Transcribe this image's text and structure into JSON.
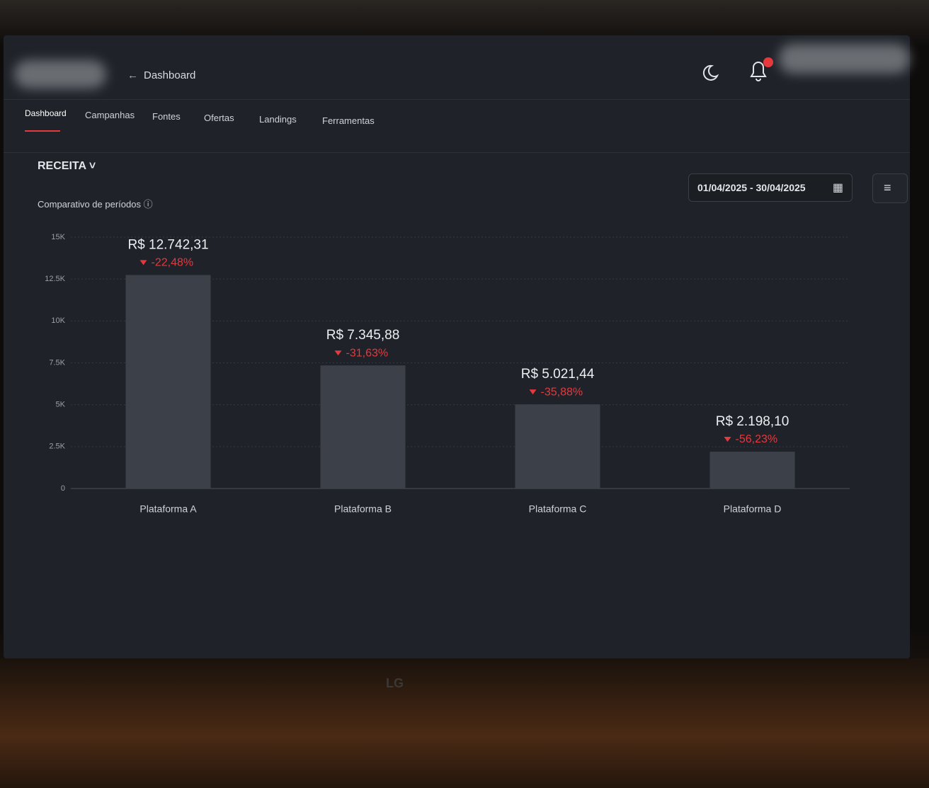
{
  "header": {
    "title": "Dashboard"
  },
  "tabs": [
    "Dashboard",
    "Campanhas",
    "Fontes",
    "Ofertas",
    "Landings",
    "Ferramentas"
  ],
  "section": {
    "title": "RECEITA",
    "subtitle": "Comparativo de períodos",
    "date_range": "01/04/2025 - 30/04/2025"
  },
  "chart_data": {
    "type": "bar",
    "categories": [
      "Plataforma A",
      "Plataforma B",
      "Plataforma C",
      "Plataforma D"
    ],
    "values": [
      12742.31,
      7345.88,
      5021.44,
      2198.1
    ],
    "value_labels": [
      "R$ 12.742,31",
      "R$ 7.345,88",
      "R$ 5.021,44",
      "R$ 2.198,10"
    ],
    "changes": [
      -22.48,
      -31.63,
      -35.88,
      -56.23
    ],
    "change_labels": [
      "-22,48%",
      "-31,63%",
      "-35,88%",
      "-56,23%"
    ],
    "color": "#3b4049",
    "change_color": "#e5393e",
    "ylim": [
      0,
      15000
    ],
    "yticks": [
      0,
      {
        "value": 2500,
        "label": "2.5K"
      },
      {
        "value": 5000,
        "label": "5K"
      },
      {
        "value": 7500,
        "label": "7.5K"
      },
      {
        "value": 10000,
        "label": "10K"
      },
      {
        "value": 12500,
        "label": "12.5K"
      },
      {
        "value": 15000,
        "label": "15K"
      }
    ],
    "grid": true
  },
  "monitor_brand": "LG"
}
